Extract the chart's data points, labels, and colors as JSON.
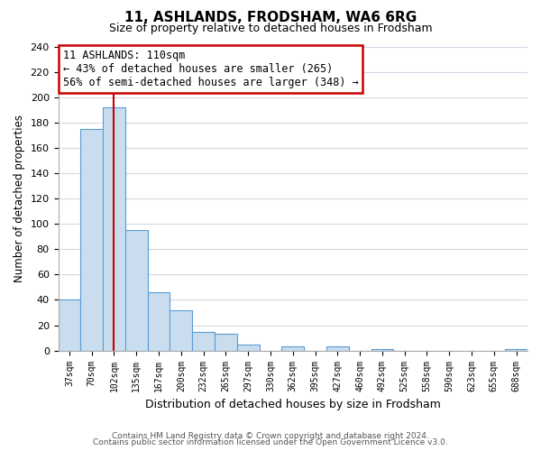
{
  "title": "11, ASHLANDS, FRODSHAM, WA6 6RG",
  "subtitle": "Size of property relative to detached houses in Frodsham",
  "xlabel": "Distribution of detached houses by size in Frodsham",
  "ylabel": "Number of detached properties",
  "bar_labels": [
    "37sqm",
    "70sqm",
    "102sqm",
    "135sqm",
    "167sqm",
    "200sqm",
    "232sqm",
    "265sqm",
    "297sqm",
    "330sqm",
    "362sqm",
    "395sqm",
    "427sqm",
    "460sqm",
    "492sqm",
    "525sqm",
    "558sqm",
    "590sqm",
    "623sqm",
    "655sqm",
    "688sqm"
  ],
  "bar_values": [
    40,
    175,
    192,
    95,
    46,
    32,
    15,
    13,
    5,
    0,
    3,
    0,
    3,
    0,
    1,
    0,
    0,
    0,
    0,
    0,
    1
  ],
  "bar_color": "#c9ddef",
  "bar_edge_color": "#5b9bd5",
  "highlight_bar_index": 2,
  "highlight_line_color": "#cc0000",
  "annotation_title": "11 ASHLANDS: 110sqm",
  "annotation_line1": "← 43% of detached houses are smaller (265)",
  "annotation_line2": "56% of semi-detached houses are larger (348) →",
  "annotation_box_color": "#ffffff",
  "annotation_box_edge_color": "#cc0000",
  "ylim": [
    0,
    240
  ],
  "yticks": [
    0,
    20,
    40,
    60,
    80,
    100,
    120,
    140,
    160,
    180,
    200,
    220,
    240
  ],
  "footer_line1": "Contains HM Land Registry data © Crown copyright and database right 2024.",
  "footer_line2": "Contains public sector information licensed under the Open Government Licence v3.0.",
  "background_color": "#ffffff",
  "grid_color": "#d0d8e4"
}
